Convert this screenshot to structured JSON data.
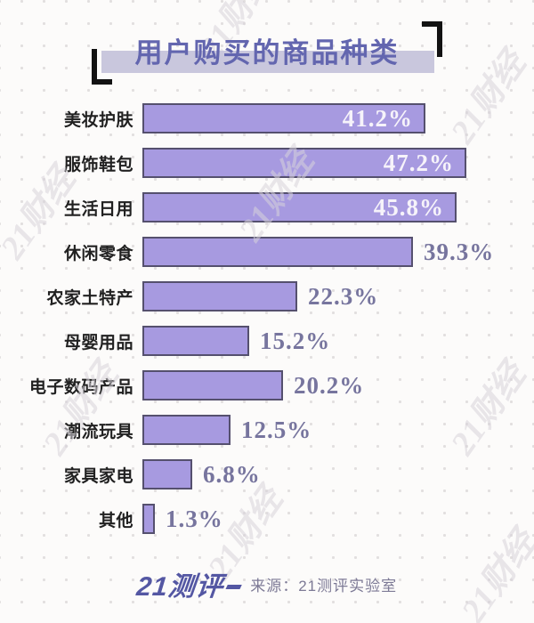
{
  "title": "用户购买的商品种类",
  "watermark": {
    "text": "21财经"
  },
  "chart_data": {
    "type": "bar",
    "orientation": "horizontal",
    "title": "用户购买的商品种类",
    "categories": [
      "美妆护肤",
      "服饰鞋包",
      "生活日用",
      "休闲零食",
      "农家土特产",
      "母婴用品",
      "电子数码产品",
      "潮流玩具",
      "家具家电",
      "其他"
    ],
    "values": [
      41.2,
      47.2,
      45.8,
      39.3,
      22.3,
      15.2,
      20.2,
      12.5,
      6.8,
      1.3
    ],
    "value_labels": [
      "41.2%",
      "47.2%",
      "45.8%",
      "39.3%",
      "22.3%",
      "15.2%",
      "20.2%",
      "12.5%",
      "6.8%",
      "1.3%"
    ],
    "value_suffix": "%",
    "xlim": [
      0,
      50
    ],
    "grid": false,
    "legend": null,
    "xlabel": "",
    "ylabel": ""
  },
  "footer": {
    "logo_text": "21测评",
    "source_label": "来源：21测评实验室"
  },
  "colors": {
    "background": "#fcfbfa",
    "dot": "#e2dfdf",
    "watermark": "#d8d4db",
    "title_text": "#6366af",
    "title_band": "#c9c7dd",
    "bracket": "#121212",
    "category_text": "#212121",
    "bar_fill": "#a79ae0",
    "bar_border": "#55506e",
    "value_inside": "#f6f3fa",
    "value_outside": "#77759e",
    "logo": "#5457a3",
    "source_text": "#7d7a96"
  }
}
